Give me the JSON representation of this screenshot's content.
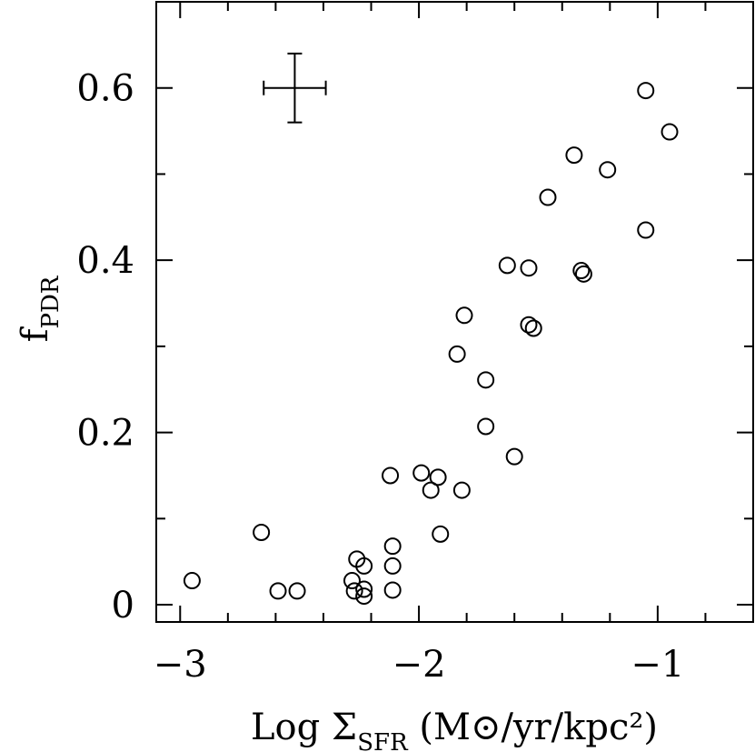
{
  "chart_data": {
    "type": "scatter",
    "title": "",
    "xlabel": {
      "prefix": "Log Σ",
      "subscript": "SFR",
      "unit_open": " (M",
      "unit_symbol": "⊙",
      "unit_close": "/yr/kpc²)"
    },
    "ylabel": {
      "main": "f",
      "subscript": "PDR"
    },
    "xlim": [
      -3.1,
      -0.6
    ],
    "ylim": [
      -0.02,
      0.7
    ],
    "x_ticks": [
      {
        "value": -3,
        "label": "−3"
      },
      {
        "value": -2,
        "label": "−2"
      },
      {
        "value": -1,
        "label": "−1"
      }
    ],
    "y_ticks": [
      {
        "value": 0,
        "label": "0"
      },
      {
        "value": 0.2,
        "label": "0.2"
      },
      {
        "value": 0.4,
        "label": "0.4"
      },
      {
        "value": 0.6,
        "label": "0.6"
      }
    ],
    "x_minor_step": 0.2,
    "y_minor_step": 0.1,
    "grid": false,
    "marker": "open-circle",
    "representative_error": {
      "x": -2.52,
      "y": 0.6,
      "x_err": 0.13,
      "y_err": 0.04
    },
    "points": [
      {
        "x": -2.95,
        "y": 0.028
      },
      {
        "x": -2.66,
        "y": 0.084
      },
      {
        "x": -2.59,
        "y": 0.016
      },
      {
        "x": -2.51,
        "y": 0.016
      },
      {
        "x": -2.28,
        "y": 0.028
      },
      {
        "x": -2.27,
        "y": 0.016
      },
      {
        "x": -2.26,
        "y": 0.053
      },
      {
        "x": -2.23,
        "y": 0.045
      },
      {
        "x": -2.23,
        "y": 0.018
      },
      {
        "x": -2.23,
        "y": 0.01
      },
      {
        "x": -2.12,
        "y": 0.15
      },
      {
        "x": -2.11,
        "y": 0.068
      },
      {
        "x": -2.11,
        "y": 0.045
      },
      {
        "x": -2.11,
        "y": 0.017
      },
      {
        "x": -1.99,
        "y": 0.153
      },
      {
        "x": -1.95,
        "y": 0.133
      },
      {
        "x": -1.92,
        "y": 0.148
      },
      {
        "x": -1.91,
        "y": 0.082
      },
      {
        "x": -1.84,
        "y": 0.291
      },
      {
        "x": -1.82,
        "y": 0.133
      },
      {
        "x": -1.81,
        "y": 0.336
      },
      {
        "x": -1.72,
        "y": 0.261
      },
      {
        "x": -1.72,
        "y": 0.207
      },
      {
        "x": -1.63,
        "y": 0.394
      },
      {
        "x": -1.6,
        "y": 0.172
      },
      {
        "x": -1.54,
        "y": 0.391
      },
      {
        "x": -1.54,
        "y": 0.325
      },
      {
        "x": -1.52,
        "y": 0.321
      },
      {
        "x": -1.46,
        "y": 0.473
      },
      {
        "x": -1.35,
        "y": 0.522
      },
      {
        "x": -1.32,
        "y": 0.388
      },
      {
        "x": -1.31,
        "y": 0.384
      },
      {
        "x": -1.21,
        "y": 0.505
      },
      {
        "x": -1.05,
        "y": 0.597
      },
      {
        "x": -1.05,
        "y": 0.435
      },
      {
        "x": -0.95,
        "y": 0.549
      }
    ]
  }
}
